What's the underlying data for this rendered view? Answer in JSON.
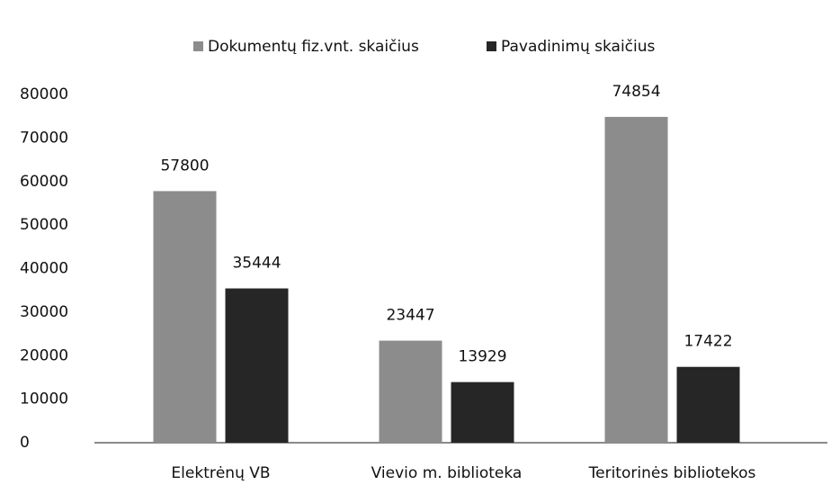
{
  "chart_data": {
    "type": "bar",
    "categories": [
      "Elektrėnų VB",
      "Vievio m. biblioteka",
      "Teritorinės bibliotekos"
    ],
    "series": [
      {
        "name": "Dokumentų fiz.vnt. skaičius",
        "color": "#8c8c8c",
        "values": [
          57800,
          23447,
          74854
        ]
      },
      {
        "name": "Pavadinimų skaičius",
        "color": "#262626",
        "values": [
          35444,
          13929,
          17422
        ]
      }
    ],
    "ylim": [
      0,
      80000
    ],
    "yticks": [
      0,
      10000,
      20000,
      30000,
      40000,
      50000,
      60000,
      70000,
      80000
    ],
    "grid": false,
    "legend": "top"
  }
}
